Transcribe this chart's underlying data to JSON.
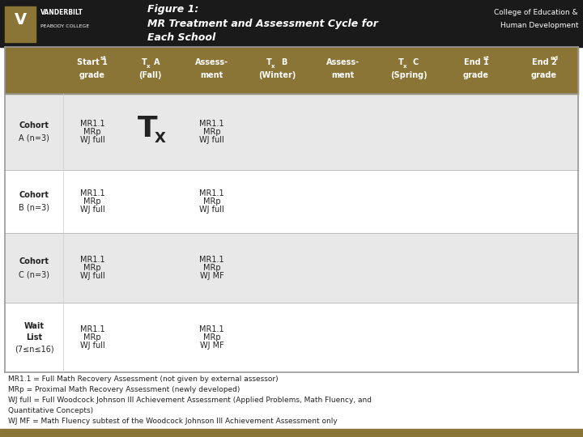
{
  "header_bg": "#1a1a1a",
  "gold_color": "#8B7536",
  "light_gray": "#e8e8e8",
  "white": "#ffffff",
  "text_dark": "#222222",
  "title_line1": "Figure 1:",
  "title_line2": "MR Treatment and Assessment Cycle for",
  "right_header1": "College of Education &",
  "right_header2": "Human Development",
  "footnote_lines": [
    "MR1.1 = Full Math Recovery Assessment (not given by external assessor)",
    "MRp = Proximal Math Recovery Assessment (newly developed)",
    "WJ full = Full Woodcock Johnson III Achievement Assessment (Applied Problems, Math Fluency, and",
    "Quantitative Concepts)",
    "WJ MF = Math Fluency subtest of the Woodcock Johnson III Achievement Assessment only"
  ]
}
